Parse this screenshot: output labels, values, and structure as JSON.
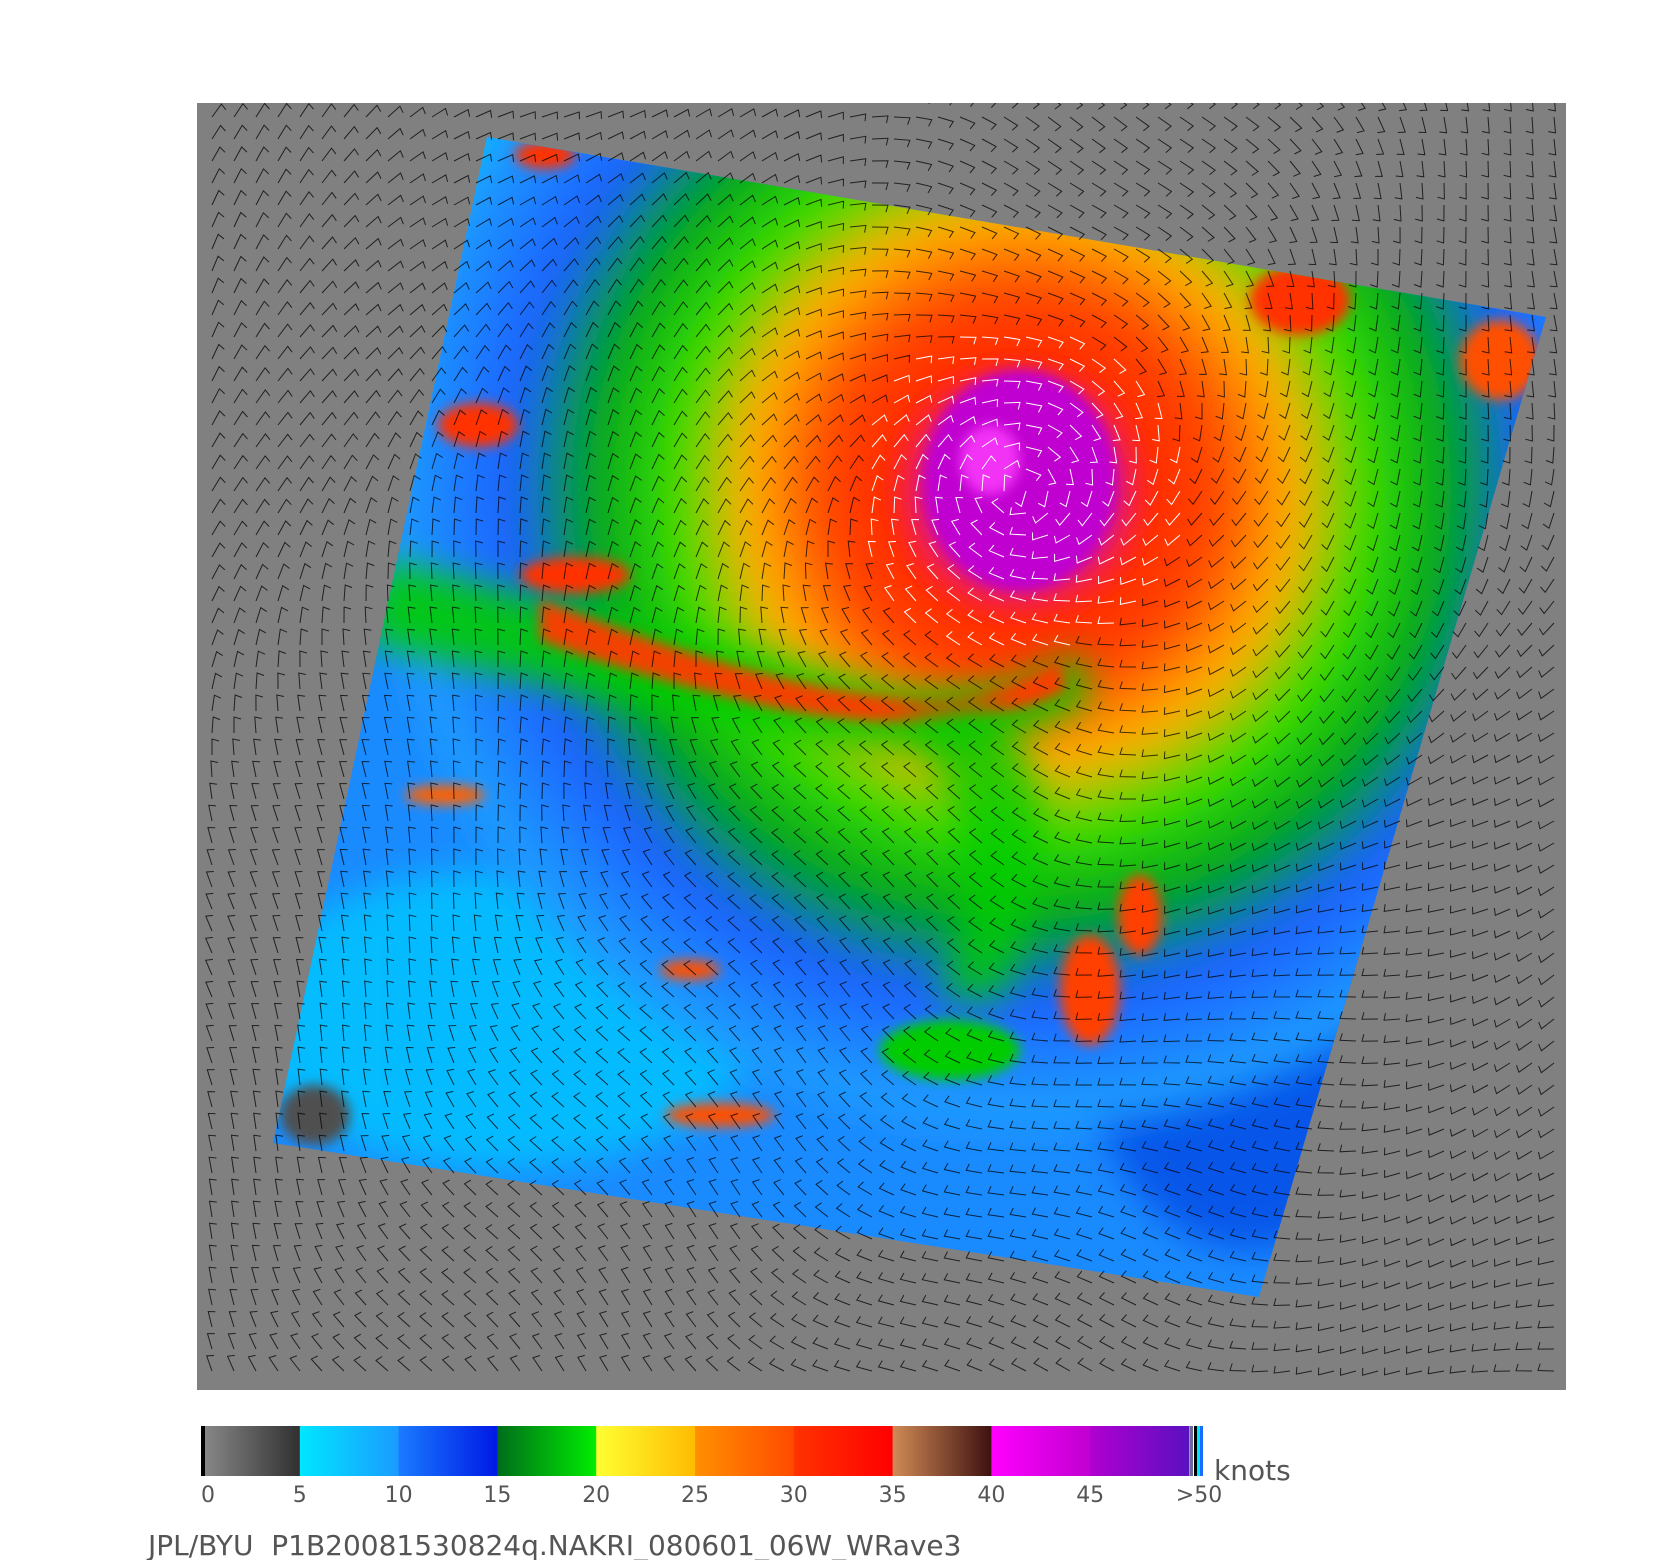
{
  "colorbar": {
    "unit": "knots",
    "tick_labels": [
      "0",
      "5",
      "10",
      "15",
      "20",
      "25",
      "30",
      "35",
      "40",
      "45",
      ">50"
    ],
    "segments": [
      {
        "from": 0,
        "to": 5,
        "start": "#8a8a8a",
        "end": "#303030"
      },
      {
        "from": 5,
        "to": 10,
        "start": "#00e6ff",
        "end": "#1a9bff"
      },
      {
        "from": 10,
        "to": 15,
        "start": "#1a7bff",
        "end": "#0018e6"
      },
      {
        "from": 15,
        "to": 20,
        "start": "#006d1a",
        "end": "#00ee00"
      },
      {
        "from": 20,
        "to": 25,
        "start": "#ffff33",
        "end": "#ffbb00"
      },
      {
        "from": 25,
        "to": 30,
        "start": "#ff9000",
        "end": "#ff4a00"
      },
      {
        "from": 30,
        "to": 35,
        "start": "#ff3300",
        "end": "#ff0000"
      },
      {
        "from": 35,
        "to": 40,
        "start": "#d08a55",
        "end": "#3d1010"
      },
      {
        "from": 40,
        "to": 45,
        "start": "#ff00ff",
        "end": "#c000d0"
      },
      {
        "from": 45,
        "to": 50,
        "start": "#b000d0",
        "end": "#5a10c0"
      }
    ]
  },
  "caption": "JPL/BYU  P1B20081530824q.NAKRI_080601_06W_WRave3",
  "colors": {
    "land_background": "#808080",
    "barb_color": "#000000",
    "barb_highlight": "#ffffff"
  }
}
